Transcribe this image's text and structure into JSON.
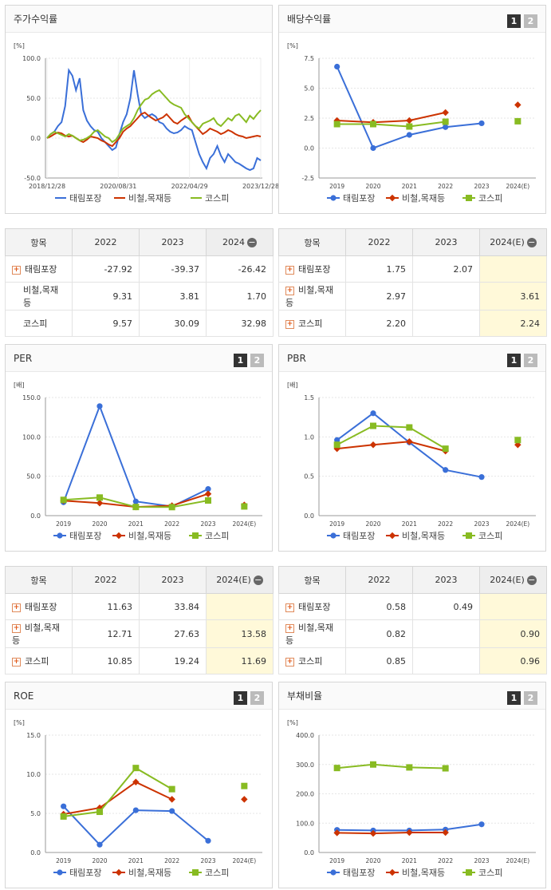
{
  "colors": {
    "series1": "#3a6fd8",
    "series2": "#cc3300",
    "series3": "#88bb22"
  },
  "legend_names": [
    "태림포장",
    "비철,목재등",
    "코스피"
  ],
  "tab_labels": [
    "1",
    "2"
  ],
  "charts": {
    "stock": {
      "title": "주가수익률",
      "unit": "[%]",
      "chart_data": {
        "type": "line",
        "ylim": [
          -50,
          100
        ],
        "yticks": [
          "100.0",
          "50.0",
          "0.0",
          "-50.0"
        ],
        "xticks": [
          "2018/12/28",
          "2020/08/31",
          "2022/04/29",
          "2023/12/28"
        ],
        "series": [
          {
            "name": "태림포장",
            "values": [
              0,
              5,
              8,
              15,
              20,
              40,
              85,
              78,
              60,
              75,
              35,
              22,
              15,
              10,
              8,
              0,
              -5,
              -10,
              -15,
              -12,
              5,
              20,
              30,
              50,
              85,
              55,
              30,
              25,
              28,
              30,
              27,
              20,
              18,
              12,
              8,
              6,
              7,
              10,
              15,
              12,
              10,
              -5,
              -20,
              -30,
              -38,
              -25,
              -20,
              -10,
              -22,
              -30,
              -20,
              -25,
              -30,
              -32,
              -35,
              -38,
              -40,
              -38,
              -25,
              -28
            ]
          },
          {
            "name": "비철,목재등",
            "values": [
              0,
              2,
              5,
              7,
              6,
              3,
              2,
              3,
              0,
              -3,
              -5,
              -2,
              2,
              1,
              0,
              -3,
              -5,
              -8,
              -10,
              -5,
              0,
              8,
              12,
              15,
              20,
              25,
              30,
              32,
              28,
              25,
              22,
              24,
              26,
              30,
              25,
              20,
              18,
              22,
              25,
              28,
              20,
              15,
              10,
              5,
              8,
              12,
              10,
              8,
              5,
              7,
              10,
              8,
              5,
              3,
              2,
              0,
              1,
              2,
              3,
              2
            ]
          },
          {
            "name": "코스피",
            "values": [
              0,
              5,
              8,
              6,
              4,
              2,
              5,
              3,
              0,
              -3,
              -2,
              0,
              3,
              8,
              10,
              6,
              2,
              0,
              -5,
              -2,
              5,
              12,
              15,
              18,
              25,
              35,
              42,
              48,
              50,
              55,
              58,
              60,
              55,
              50,
              45,
              42,
              40,
              38,
              30,
              25,
              20,
              15,
              12,
              18,
              20,
              22,
              25,
              18,
              15,
              20,
              25,
              22,
              28,
              30,
              25,
              20,
              28,
              24,
              30,
              35
            ]
          }
        ]
      },
      "table": {
        "header": [
          "항목",
          "2022",
          "2023",
          "2024"
        ],
        "rows": [
          {
            "label": "태림포장",
            "values": [
              "-27.92",
              "-39.37",
              "-26.42"
            ],
            "plus": true
          },
          {
            "label": "비철,목재등",
            "values": [
              "9.31",
              "3.81",
              "1.70"
            ],
            "plus": false
          },
          {
            "label": "코스피",
            "values": [
              "9.57",
              "30.09",
              "32.98"
            ],
            "plus": false
          }
        ]
      }
    },
    "dividend": {
      "title": "배당수익률",
      "unit": "[%]",
      "chart_data": {
        "type": "line",
        "ylim": [
          -2.5,
          7.5
        ],
        "yticks": [
          "7.5",
          "5.0",
          "2.5",
          "0.0",
          "-2.5"
        ],
        "categories": [
          "2019",
          "2020",
          "2021",
          "2022",
          "2023",
          "2024(E)"
        ],
        "series": [
          {
            "name": "태림포장",
            "values": [
              6.8,
              0.0,
              1.1,
              1.75,
              2.07,
              null
            ]
          },
          {
            "name": "비철,목재등",
            "values": [
              2.3,
              2.15,
              2.3,
              2.97,
              null,
              3.61
            ]
          },
          {
            "name": "코스피",
            "values": [
              2.0,
              2.0,
              1.8,
              2.2,
              null,
              2.24
            ]
          }
        ]
      },
      "table": {
        "header": [
          "항목",
          "2022",
          "2023",
          "2024(E)"
        ],
        "rows": [
          {
            "label": "태림포장",
            "values": [
              "1.75",
              "2.07",
              ""
            ],
            "plus": true
          },
          {
            "label": "비철,목재등",
            "values": [
              "2.97",
              "",
              "3.61"
            ],
            "plus": true
          },
          {
            "label": "코스피",
            "values": [
              "2.20",
              "",
              "2.24"
            ],
            "plus": true
          }
        ]
      }
    },
    "per": {
      "title": "PER",
      "unit": "[배]",
      "chart_data": {
        "type": "line",
        "ylim": [
          0,
          150
        ],
        "yticks": [
          "150.0",
          "100.0",
          "50.0",
          "0.0"
        ],
        "categories": [
          "2019",
          "2020",
          "2021",
          "2022",
          "2023",
          "2024(E)"
        ],
        "series": [
          {
            "name": "태림포장",
            "values": [
              17,
              139,
              18,
              11.63,
              33.84,
              null
            ]
          },
          {
            "name": "비철,목재등",
            "values": [
              19,
              16,
              11,
              12.71,
              27.63,
              13.58
            ]
          },
          {
            "name": "코스피",
            "values": [
              20,
              23,
              11,
              10.85,
              19.24,
              11.69
            ]
          }
        ]
      },
      "table": {
        "header": [
          "항목",
          "2022",
          "2023",
          "2024(E)"
        ],
        "rows": [
          {
            "label": "태림포장",
            "values": [
              "11.63",
              "33.84",
              ""
            ],
            "plus": true
          },
          {
            "label": "비철,목재등",
            "values": [
              "12.71",
              "27.63",
              "13.58"
            ],
            "plus": true
          },
          {
            "label": "코스피",
            "values": [
              "10.85",
              "19.24",
              "11.69"
            ],
            "plus": true
          }
        ]
      }
    },
    "pbr": {
      "title": "PBR",
      "unit": "[배]",
      "chart_data": {
        "type": "line",
        "ylim": [
          0,
          1.5
        ],
        "yticks": [
          "1.5",
          "1.0",
          "0.5",
          "0.0"
        ],
        "categories": [
          "2019",
          "2020",
          "2021",
          "2022",
          "2023",
          "2024(E)"
        ],
        "series": [
          {
            "name": "태림포장",
            "values": [
              0.96,
              1.3,
              0.93,
              0.58,
              0.49,
              null
            ]
          },
          {
            "name": "비철,목재등",
            "values": [
              0.85,
              0.9,
              0.94,
              0.82,
              null,
              0.9
            ]
          },
          {
            "name": "코스피",
            "values": [
              0.9,
              1.14,
              1.12,
              0.85,
              null,
              0.96
            ]
          }
        ]
      },
      "table": {
        "header": [
          "항목",
          "2022",
          "2023",
          "2024(E)"
        ],
        "rows": [
          {
            "label": "태림포장",
            "values": [
              "0.58",
              "0.49",
              ""
            ],
            "plus": true
          },
          {
            "label": "비철,목재등",
            "values": [
              "0.82",
              "",
              "0.90"
            ],
            "plus": true
          },
          {
            "label": "코스피",
            "values": [
              "0.85",
              "",
              "0.96"
            ],
            "plus": true
          }
        ]
      }
    },
    "roe": {
      "title": "ROE",
      "unit": "[%]",
      "chart_data": {
        "type": "line",
        "ylim": [
          0,
          15
        ],
        "yticks": [
          "15.0",
          "10.0",
          "5.0",
          "0.0"
        ],
        "categories": [
          "2019",
          "2020",
          "2021",
          "2022",
          "2023",
          "2024(E)"
        ],
        "series": [
          {
            "name": "태림포장",
            "values": [
              5.9,
              1.0,
              5.4,
              5.3,
              1.5,
              null
            ]
          },
          {
            "name": "비철,목재등",
            "values": [
              4.9,
              5.7,
              9.0,
              6.8,
              null,
              6.8
            ]
          },
          {
            "name": "코스피",
            "values": [
              4.6,
              5.2,
              10.8,
              8.1,
              null,
              8.5
            ]
          }
        ]
      }
    },
    "debt": {
      "title": "부채비율",
      "unit": "[%]",
      "chart_data": {
        "type": "line",
        "ylim": [
          0,
          400
        ],
        "yticks": [
          "400.0",
          "300.0",
          "200.0",
          "100.0",
          "0.0"
        ],
        "categories": [
          "2019",
          "2020",
          "2021",
          "2022",
          "2023",
          "2024(E)"
        ],
        "series": [
          {
            "name": "태림포장",
            "values": [
              77,
              75,
              75,
              78,
              96,
              null
            ]
          },
          {
            "name": "비철,목재등",
            "values": [
              67,
              65,
              68,
              68,
              null,
              null
            ]
          },
          {
            "name": "코스피",
            "values": [
              288,
              300,
              290,
              287,
              null,
              null
            ]
          }
        ]
      }
    }
  }
}
